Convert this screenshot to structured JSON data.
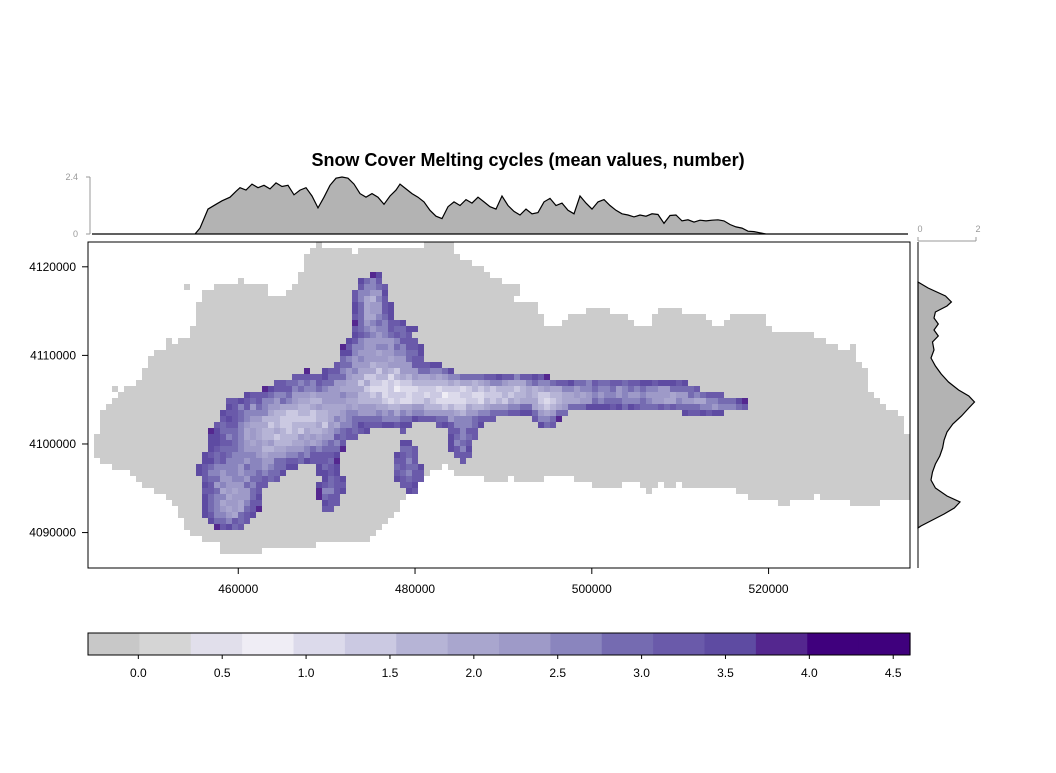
{
  "title": "Snow Cover Melting cycles (mean values, number)",
  "map": {
    "x_ticks": [
      460000,
      480000,
      500000,
      520000
    ],
    "y_ticks": [
      4090000,
      4100000,
      4110000,
      4120000
    ],
    "x_range": [
      443000,
      536000
    ],
    "y_range": [
      4086000,
      4122800
    ],
    "background_color": "#cccccc",
    "snow_palette": [
      "#e1dfeb",
      "#efedf5",
      "#dcdaeb",
      "#cbc9e2",
      "#b6b4d6",
      "#a9a6ce",
      "#9e9ac8",
      "#8a85be",
      "#756bb1",
      "#6a5aaa",
      "#5e4ba2",
      "#54278f",
      "#3f007d"
    ]
  },
  "top_marginal": {
    "axis_labels": [
      "0",
      "2.4"
    ],
    "max": 2.4,
    "fill": "#b3b3b3"
  },
  "right_marginal": {
    "axis_labels": [
      "0",
      "2"
    ],
    "max": 2,
    "fill": "#b3b3b3"
  },
  "colorbar": {
    "tick_labels": [
      "0.0",
      "0.5",
      "1.0",
      "1.5",
      "2.0",
      "2.5",
      "3.0",
      "3.5",
      "4.0",
      "4.5"
    ],
    "range": [
      -0.3,
      4.6
    ],
    "colors": [
      "#c8c8c8",
      "#d5d5d5",
      "#e1dfeb",
      "#efedf5",
      "#dcdaeb",
      "#cbc9e2",
      "#b6b4d6",
      "#a9a6ce",
      "#9e9ac8",
      "#8a85be",
      "#756bb1",
      "#6a5aaa",
      "#5e4ba2",
      "#54278f",
      "#3f007d",
      "#3f007d"
    ]
  }
}
